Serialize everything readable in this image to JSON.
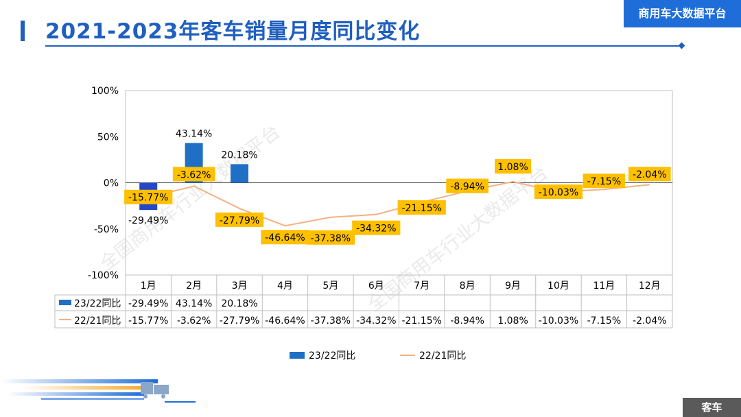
{
  "header": {
    "title": "2021-2023年客车销量月度同比变化",
    "brand": "商用车大数据平台"
  },
  "footer": {
    "tag": "客车"
  },
  "watermark": "全国商用车行业大数据平台",
  "chart_data": {
    "type": "bar",
    "categories": [
      "1月",
      "2月",
      "3月",
      "4月",
      "5月",
      "6月",
      "7月",
      "8月",
      "9月",
      "10月",
      "11月",
      "12月"
    ],
    "ylim": [
      -100,
      100
    ],
    "yticks": [
      -100,
      -50,
      0,
      50,
      100
    ],
    "ytick_labels": [
      "-100%",
      "-50%",
      "0%",
      "50%",
      "100%"
    ],
    "grid": false,
    "legend": "bottom",
    "series": [
      {
        "name": "23/22同比",
        "kind": "bar",
        "color": "#1f6fc5",
        "values": [
          -29.49,
          43.14,
          20.18,
          null,
          null,
          null,
          null,
          null,
          null,
          null,
          null,
          null
        ],
        "labels": [
          "-29.49%",
          "43.14%",
          "20.18%",
          "",
          "",
          "",
          "",
          "",
          "",
          "",
          "",
          ""
        ]
      },
      {
        "name": "22/21同比",
        "kind": "line",
        "color": "#f4b183",
        "values": [
          -15.77,
          -3.62,
          -27.79,
          -46.64,
          -37.38,
          -34.32,
          -21.15,
          -8.94,
          1.08,
          -10.03,
          -7.15,
          -2.04
        ],
        "labels": [
          "-15.77%",
          "-3.62%",
          "-27.79%",
          "-46.64%",
          "-37.38%",
          "-34.32%",
          "-21.15%",
          "-8.94%",
          "1.08%",
          "-10.03%",
          "-7.15%",
          "-2.04%"
        ]
      }
    ]
  },
  "colors": {
    "title_blue": "#1f5fbf",
    "bar_blue": "#1f6fc5",
    "first_bar_blue": "#2446c8",
    "line_orange": "#f4b183",
    "label_box": "#ffc000",
    "footer_gray": "#5a5a5a"
  }
}
